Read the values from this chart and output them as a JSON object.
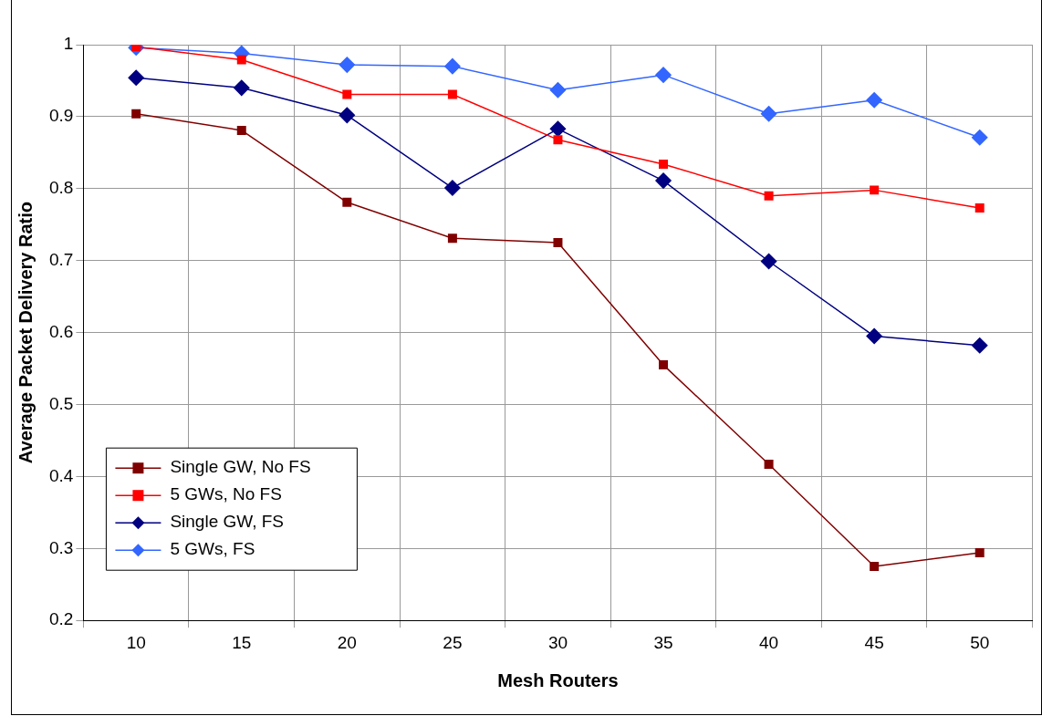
{
  "chart_data": {
    "type": "line",
    "xlabel": "Mesh Routers",
    "ylabel": "Average Packet Delivery Ratio",
    "categories": [
      "10",
      "15",
      "20",
      "25",
      "30",
      "35",
      "40",
      "45",
      "50"
    ],
    "series": [
      {
        "name": "Single GW, No FS",
        "color": "#800000",
        "marker": "square",
        "values": [
          0.904,
          0.881,
          0.781,
          0.731,
          0.725,
          0.555,
          0.417,
          0.275,
          0.294
        ]
      },
      {
        "name": "5 GWs, No FS",
        "color": "#ff0000",
        "marker": "square",
        "values": [
          0.997,
          0.979,
          0.931,
          0.931,
          0.868,
          0.834,
          0.79,
          0.798,
          0.773
        ]
      },
      {
        "name": "Single GW, FS",
        "color": "#000080",
        "marker": "diamond",
        "values": [
          0.954,
          0.94,
          0.902,
          0.801,
          0.883,
          0.811,
          0.699,
          0.595,
          0.582
        ]
      },
      {
        "name": "5 GWs, FS",
        "color": "#3366ff",
        "marker": "diamond",
        "values": [
          0.996,
          0.988,
          0.972,
          0.97,
          0.937,
          0.958,
          0.904,
          0.923,
          0.871
        ]
      }
    ],
    "ylim": [
      0.2,
      1
    ],
    "yticks": [
      0.2,
      0.3,
      0.4,
      0.5,
      0.6,
      0.7,
      0.8,
      0.9,
      1
    ],
    "grid": true,
    "legend": "bottom left",
    "line_style": "solid"
  }
}
